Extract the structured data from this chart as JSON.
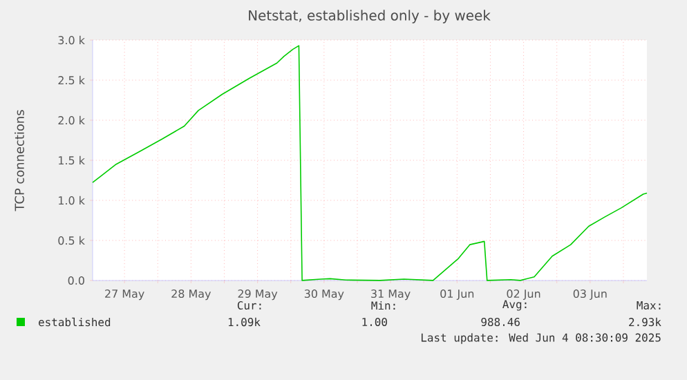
{
  "chart_data": {
    "type": "line",
    "title": "Netstat, established only - by week",
    "ylabel": "TCP connections",
    "xlim": [
      "2025-05-27T00:30",
      "2025-06-04T08:30"
    ],
    "xticks": [
      {
        "value": "2025-05-27T12:00",
        "label": "27 May"
      },
      {
        "value": "2025-05-28",
        "label": null
      },
      {
        "value": "2025-05-28T12:00",
        "label": "28 May"
      },
      {
        "value": "2025-05-29",
        "label": null
      },
      {
        "value": "2025-05-29T12:00",
        "label": "29 May"
      },
      {
        "value": "2025-05-30",
        "label": null
      },
      {
        "value": "2025-05-30T12:00",
        "label": "30 May"
      },
      {
        "value": "2025-05-31",
        "label": null
      },
      {
        "value": "2025-05-31T12:00",
        "label": "31 May"
      },
      {
        "value": "2025-06-01",
        "label": null
      },
      {
        "value": "2025-06-01T12:00",
        "label": "01 Jun"
      },
      {
        "value": "2025-06-02",
        "label": null
      },
      {
        "value": "2025-06-02T12:00",
        "label": "02 Jun"
      },
      {
        "value": "2025-06-03",
        "label": null
      },
      {
        "value": "2025-06-03T12:00",
        "label": "03 Jun"
      },
      {
        "value": "2025-06-04",
        "label": null
      }
    ],
    "ylim": [
      0,
      3000
    ],
    "yticks": [
      {
        "value": 0,
        "label": "0.0"
      },
      {
        "value": 500,
        "label": "0.5 k"
      },
      {
        "value": 1000,
        "label": "1.0 k"
      },
      {
        "value": 1500,
        "label": "1.5 k"
      },
      {
        "value": 2000,
        "label": "2.0 k"
      },
      {
        "value": 2500,
        "label": "2.5 k"
      },
      {
        "value": 3000,
        "label": "3.0 k"
      }
    ],
    "grid": true,
    "legend": "bottom left",
    "series": [
      {
        "name": "established",
        "color": "#00cc00",
        "x": [
          "2025-05-27T00:30",
          "2025-05-27T09:00",
          "2025-05-27T17:15",
          "2025-05-28T01:40",
          "2025-05-28T09:35",
          "2025-05-28T14:40",
          "2025-05-28T23:15",
          "2025-05-29T09:05",
          "2025-05-29T19:00",
          "2025-05-29T21:35",
          "2025-05-30T00:45",
          "2025-05-30T02:55",
          "2025-05-30T04:05",
          "2025-05-30T10:50",
          "2025-05-30T14:10",
          "2025-05-30T19:55",
          "2025-05-31T08:10",
          "2025-05-31T16:50",
          "2025-06-01T03:20",
          "2025-06-01T12:30",
          "2025-06-01T16:35",
          "2025-06-01T21:50",
          "2025-06-01T22:50",
          "2025-06-02T07:25",
          "2025-06-02T10:50",
          "2025-06-02T15:50",
          "2025-06-02T22:20",
          "2025-06-03T05:00",
          "2025-06-03T11:30",
          "2025-06-03T17:15",
          "2025-06-03T23:15",
          "2025-06-04T07:10",
          "2025-06-04T08:30"
        ],
        "values": [
          1222,
          1451,
          1606,
          1767,
          1927,
          2122,
          2323,
          2524,
          2713,
          2799,
          2885,
          2930,
          1,
          17,
          23,
          6,
          1,
          17,
          1,
          275,
          447,
          488,
          1,
          11,
          1,
          46,
          304,
          447,
          677,
          792,
          906,
          1078,
          1090
        ]
      }
    ],
    "annotations": [
      "Cur:",
      "Min:",
      "Avg:",
      "Max:",
      "1.09k",
      "1.00",
      "988.46",
      "2.93k",
      "Last update: Wed Jun  4 08:30:09 2025"
    ]
  }
}
